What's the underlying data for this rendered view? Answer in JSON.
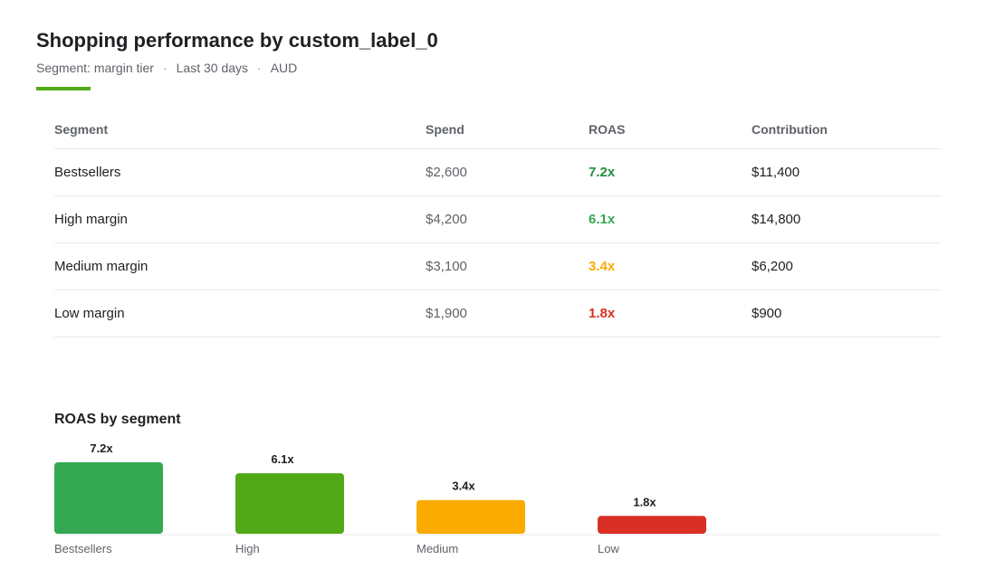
{
  "header": {
    "title": "Shopping performance by custom_label_0",
    "segment": "Segment: margin tier",
    "period": "Last 30 days",
    "currency": "AUD",
    "separator": "·"
  },
  "accent_color": "#52a917",
  "table": {
    "columns": [
      "Segment",
      "Spend",
      "ROAS",
      "Contribution"
    ],
    "rows": [
      {
        "segment": "Bestsellers",
        "spend": "$2,600",
        "roas": "7.2x",
        "contribution": "$11,400",
        "roas_color": "#1e8e3e"
      },
      {
        "segment": "High margin",
        "spend": "$4,200",
        "roas": "6.1x",
        "contribution": "$14,800",
        "roas_color": "#34a853"
      },
      {
        "segment": "Medium margin",
        "spend": "$3,100",
        "roas": "3.4x",
        "contribution": "$6,200",
        "roas_color": "#f9ab00"
      },
      {
        "segment": "Low margin",
        "spend": "$1,900",
        "roas": "1.8x",
        "contribution": "$900",
        "roas_color": "#d93025"
      }
    ]
  },
  "chart_data": {
    "type": "bar",
    "title": "ROAS by segment",
    "categories": [
      "Bestsellers",
      "High",
      "Medium",
      "Low"
    ],
    "values": [
      7.2,
      6.1,
      3.4,
      1.8
    ],
    "data_labels": [
      "7.2x",
      "6.1x",
      "3.4x",
      "1.8x"
    ],
    "colors": [
      "#34a853",
      "#52a917",
      "#f9ab00",
      "#d93025"
    ],
    "xlabel": "",
    "ylabel": "",
    "ylim": [
      0,
      7.2
    ],
    "grid": false,
    "legend": "none"
  }
}
